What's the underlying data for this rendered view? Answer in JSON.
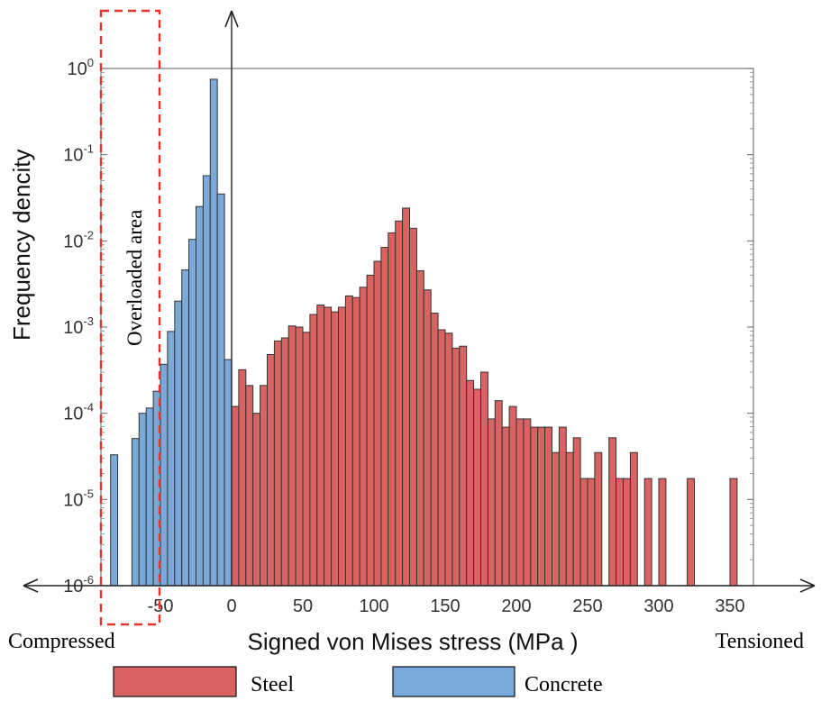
{
  "chart_data": {
    "type": "bar",
    "xlabel": "Signed von Mises stress (MPa )",
    "ylabel": "Frequency dencity",
    "yscale": "log",
    "ylim": [
      1e-06,
      1
    ],
    "xlim": [
      -92,
      366
    ],
    "x_ticks": [
      "-50",
      "0",
      "50",
      "100",
      "150",
      "200",
      "250",
      "300",
      "350"
    ],
    "x_tick_values": [
      -50,
      0,
      50,
      100,
      150,
      200,
      250,
      300,
      350
    ],
    "y_ticks": [
      {
        "base": "10",
        "exp": "0",
        "value": 1
      },
      {
        "base": "10",
        "exp": "-1",
        "value": 0.1
      },
      {
        "base": "10",
        "exp": "-2",
        "value": 0.01
      },
      {
        "base": "10",
        "exp": "-3",
        "value": 0.001
      },
      {
        "base": "10",
        "exp": "-4",
        "value": 0.0001
      },
      {
        "base": "10",
        "exp": "-5",
        "value": 1e-05
      },
      {
        "base": "10",
        "exp": "-6",
        "value": 1e-06
      }
    ],
    "grid": false,
    "legend_position": "bottom",
    "bin_width": 5,
    "series": [
      {
        "name": "Steel",
        "color": "#D96262",
        "bin_start": 0,
        "values": [
          0.00012,
          0.00032,
          0.00021,
          0.0001,
          0.00021,
          0.00048,
          0.00069,
          0.00075,
          0.00103,
          0.001,
          0.00087,
          0.0014,
          0.0018,
          0.0017,
          0.0015,
          0.0017,
          0.0023,
          0.0022,
          0.0029,
          0.004,
          0.0058,
          0.0084,
          0.0124,
          0.017,
          0.024,
          0.014,
          0.0045,
          0.0027,
          0.00145,
          0.00093,
          0.00085,
          0.00057,
          0.0006,
          0.00024,
          0.00019,
          0.0003,
          8.6e-05,
          0.00014,
          6.9e-05,
          0.00012,
          8.6e-05,
          8.6e-05,
          6.9e-05,
          6.9e-05,
          6.9e-05,
          3.5e-05,
          6.9e-05,
          3.5e-05,
          5.2e-05,
          1.75e-05,
          1.75e-05,
          3.5e-05,
          0,
          5.2e-05,
          1.75e-05,
          1.75e-05,
          3.5e-05,
          0,
          1.75e-05,
          0,
          1.75e-05,
          0,
          0,
          0,
          1.75e-05,
          0,
          0,
          0,
          0,
          0,
          1.75e-05
        ]
      },
      {
        "name": "Concrete",
        "color": "#7AA9DA",
        "bin_start": -85,
        "values": [
          3.3e-05,
          0,
          0,
          5.1e-05,
          0.0001,
          0.000115,
          0.00018,
          0.00037,
          0.00089,
          0.002,
          0.0046,
          0.0104,
          0.025,
          0.057,
          0.75,
          0.035,
          0.00042
        ]
      }
    ],
    "annotations": {
      "overloaded_area": "Overloaded area",
      "left_side": "Compressed",
      "right_side": "Tensioned",
      "overloaded_color": "#E8322C"
    }
  }
}
